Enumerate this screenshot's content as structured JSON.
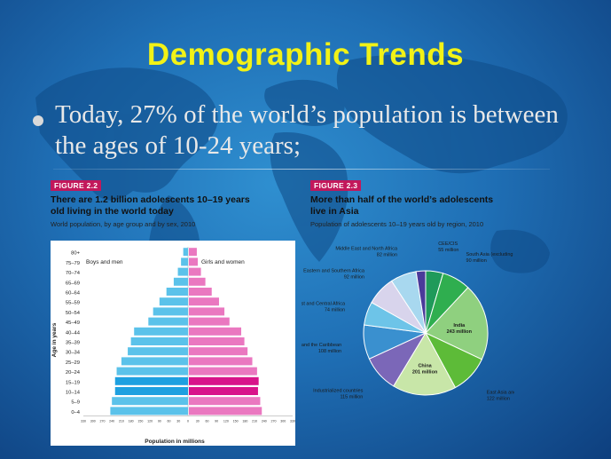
{
  "slide": {
    "title": "Demographic Trends",
    "bullet": "Today, 27% of the world’s population is between the ages of 10-24 years;"
  },
  "figure_2_2": {
    "label": "FIGURE 2.2",
    "title_line1": "There are 1.2 billion adolescents 10–19 years",
    "title_line2": "old living in the world today",
    "subtitle": "World population, by age group and by sex, 2010"
  },
  "figure_2_3": {
    "label": "FIGURE 2.3",
    "title_line1": "More than half of the world’s adolescents",
    "title_line2": "live in Asia",
    "subtitle": "Population of adolescents 10–19 years old by region, 2010"
  },
  "colors": {
    "title": "#f2f216",
    "boys": "#5bc2ea",
    "boys_highlight": "#1ea0e0",
    "girls": "#ea78c0",
    "girls_highlight": "#d8148a",
    "figure_label_bg": "#c2185b"
  },
  "chart_data": [
    {
      "type": "bar",
      "orientation": "horizontal-population-pyramid",
      "title": "",
      "ylabel": "Age in years",
      "xlabel": "Population in millions",
      "legend": [
        "Boys and men",
        "Girls and women"
      ],
      "xlim": [
        -330,
        330
      ],
      "xticks": [
        330,
        300,
        270,
        240,
        210,
        180,
        150,
        120,
        90,
        60,
        30,
        0,
        30,
        60,
        90,
        120,
        150,
        180,
        210,
        240,
        270,
        300,
        330
      ],
      "categories": [
        "80+",
        "75–79",
        "70–74",
        "65–69",
        "60–64",
        "55–59",
        "50–54",
        "45–49",
        "40–44",
        "35–39",
        "30–34",
        "25–29",
        "20–24",
        "15–19",
        "10–14",
        "5–9",
        "0–4"
      ],
      "highlighted": [
        "15–19",
        "10–14"
      ],
      "series": [
        {
          "name": "Boys and men",
          "values": [
            15,
            22,
            32,
            45,
            68,
            90,
            110,
            125,
            170,
            180,
            190,
            210,
            225,
            230,
            230,
            240,
            245
          ]
        },
        {
          "name": "Girls and women",
          "values": [
            25,
            28,
            38,
            52,
            72,
            95,
            112,
            128,
            165,
            175,
            185,
            200,
            215,
            220,
            218,
            225,
            230
          ]
        }
      ]
    },
    {
      "type": "pie",
      "title": "",
      "slices": [
        {
          "label": "CEE/CIS",
          "value_label": "55 million",
          "value": 55,
          "color": "#1f9a5a"
        },
        {
          "label": "South Asia (excluding India)",
          "value_label": "90 million",
          "value": 90,
          "color": "#2fae4f"
        },
        {
          "label": "India",
          "value_label": "243 million",
          "value": 243,
          "color": "#8fd07f"
        },
        {
          "label": "East Asia and the Pacific (excluding China)",
          "value_label": "122 million",
          "value": 122,
          "color": "#5dbb38"
        },
        {
          "label": "China",
          "value_label": "201 million",
          "value": 201,
          "color": "#c8e6a8"
        },
        {
          "label": "Industrialized countries",
          "value_label": "115 million",
          "value": 115,
          "color": "#7b67b8"
        },
        {
          "label": "Latin America and the Caribbean",
          "value_label": "108 million",
          "value": 108,
          "color": "#3a90cf"
        },
        {
          "label": "West and Central Africa",
          "value_label": "74 million",
          "value": 74,
          "color": "#6dc4e8"
        },
        {
          "label": "Eastern and Southern Africa",
          "value_label": "92 million",
          "value": 92,
          "color": "#d8d4ec"
        },
        {
          "label": "Middle East and North Africa",
          "value_label": "82 million",
          "value": 82,
          "color": "#a8d8ef"
        },
        {
          "label": "",
          "value_label": "",
          "value": 30,
          "color": "#4a3a9a"
        }
      ]
    }
  ]
}
